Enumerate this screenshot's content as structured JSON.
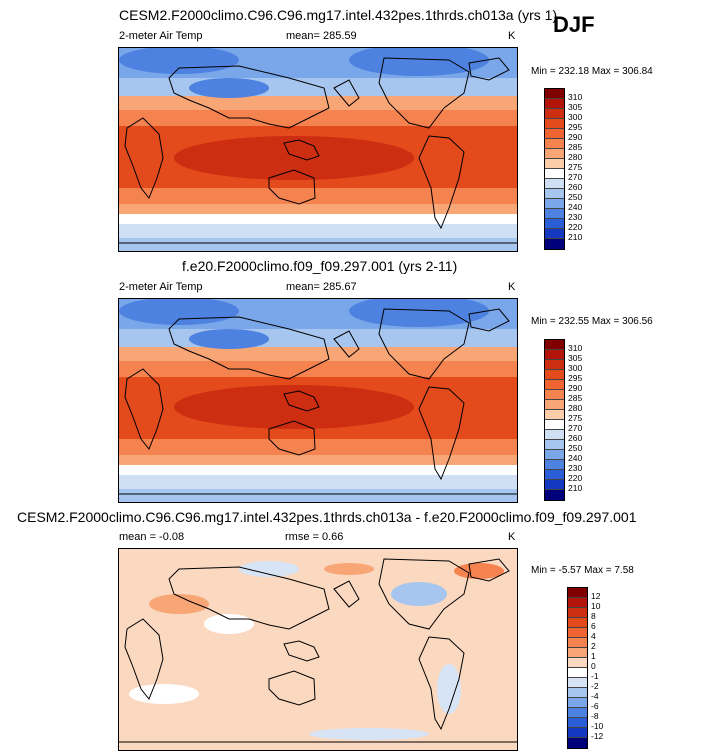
{
  "season": "DJF",
  "panels": [
    {
      "title": "CESM2.F2000climo.C96.C96.mg17.intel.432pes.1thrds.ch013a (yrs 1)",
      "variable": "2-meter Air Temp",
      "stat_text": "mean= 285.59",
      "units": "K",
      "minmax": "Min = 232.18 Max = 306.84"
    },
    {
      "title": "f.e20.F2000climo.f09_f09.297.001 (yrs 2-11)",
      "variable": "2-meter Air Temp",
      "stat_text": "mean= 285.67",
      "units": "K",
      "minmax": "Min = 232.55 Max = 306.56"
    },
    {
      "title": "CESM2.F2000climo.C96.C96.mg17.intel.432pes.1thrds.ch013a - f.e20.F2000climo.f09_f09.297.001",
      "variable": "mean =  -0.08",
      "stat_text": "rmse =   0.66",
      "units": "K",
      "minmax": "Min =  -5.57 Max =   7.58"
    }
  ],
  "chart_data": [
    {
      "type": "heatmap",
      "title": "CESM2.F2000climo.C96.C96.mg17.intel.432pes.1thrds.ch013a (yrs 1)",
      "variable": "2-meter Air Temp",
      "units": "K",
      "mean": 285.59,
      "min": 232.18,
      "max": 306.84,
      "colorbar": {
        "levels": [
          310,
          305,
          300,
          295,
          290,
          285,
          280,
          275,
          270,
          260,
          250,
          240,
          230,
          220,
          210
        ],
        "colors": [
          "#800000",
          "#b2140a",
          "#cd2d10",
          "#e34a1c",
          "#f06432",
          "#f5834f",
          "#f9a677",
          "#fbcda8",
          "#ffffff",
          "#cfe0f5",
          "#a6c6ef",
          "#7aa6ea",
          "#4d82e0",
          "#2a5ed6",
          "#1538c0",
          "#00007a"
        ]
      }
    },
    {
      "type": "heatmap",
      "title": "f.e20.F2000climo.f09_f09.297.001 (yrs 2-11)",
      "variable": "2-meter Air Temp",
      "units": "K",
      "mean": 285.67,
      "min": 232.55,
      "max": 306.56,
      "colorbar": {
        "levels": [
          310,
          305,
          300,
          295,
          290,
          285,
          280,
          275,
          270,
          260,
          250,
          240,
          230,
          220,
          210
        ],
        "colors": [
          "#800000",
          "#b2140a",
          "#cd2d10",
          "#e34a1c",
          "#f06432",
          "#f5834f",
          "#f9a677",
          "#fbcda8",
          "#ffffff",
          "#cfe0f5",
          "#a6c6ef",
          "#7aa6ea",
          "#4d82e0",
          "#2a5ed6",
          "#1538c0",
          "#00007a"
        ]
      }
    },
    {
      "type": "heatmap",
      "title": "CESM2.F2000climo.C96.C96.mg17.intel.432pes.1thrds.ch013a - f.e20.F2000climo.f09_f09.297.001",
      "units": "K",
      "mean": -0.08,
      "rmse": 0.66,
      "min": -5.57,
      "max": 7.58,
      "colorbar": {
        "levels": [
          12,
          10,
          8,
          6,
          4,
          2,
          1,
          0,
          -1,
          -2,
          -4,
          -6,
          -8,
          -10,
          -12
        ],
        "colors": [
          "#800000",
          "#b2140a",
          "#cd2d10",
          "#e34a1c",
          "#f06432",
          "#f5834f",
          "#f9a677",
          "#fbd8c0",
          "#ffffff",
          "#d6e4f5",
          "#a6c6ef",
          "#7aa6ea",
          "#4d82e0",
          "#2a5ed6",
          "#1538c0",
          "#00007a"
        ]
      }
    }
  ]
}
